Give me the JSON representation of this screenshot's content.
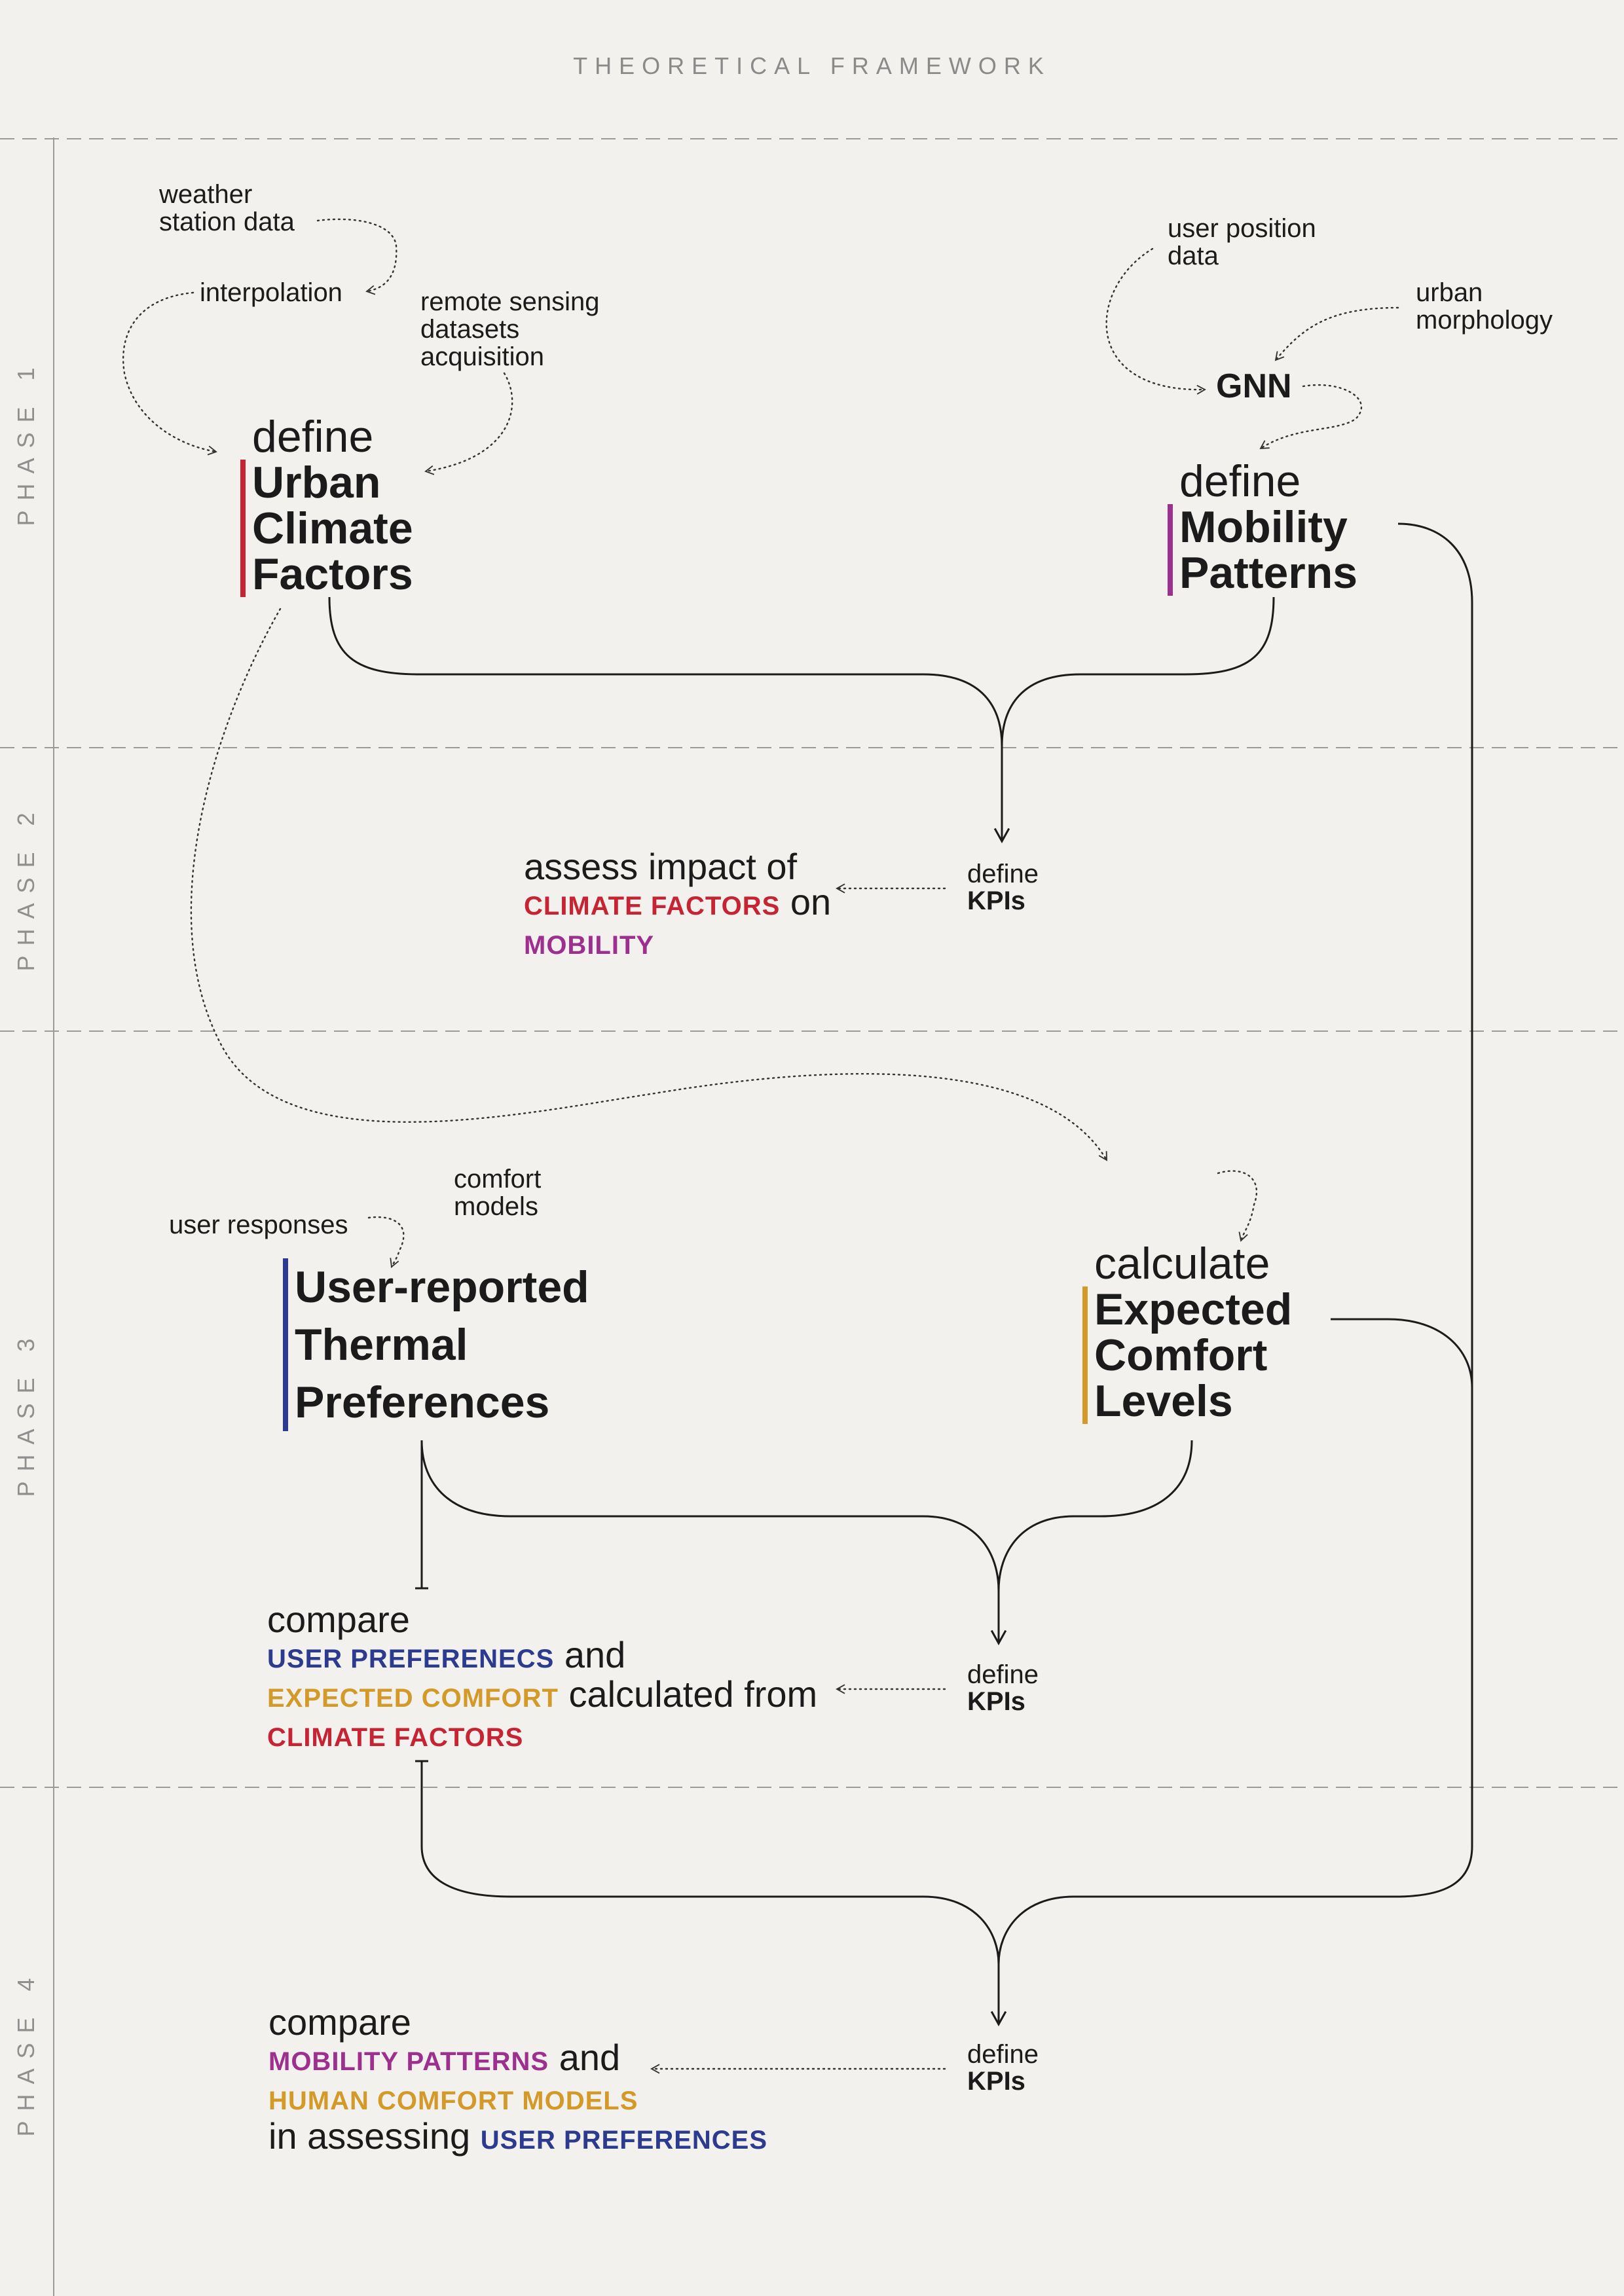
{
  "title": "THEORETICAL   FRAMEWORK",
  "colors": {
    "background": "#f3f1ed",
    "climate_red": "#c62433",
    "mobility_purple": "#9d2f8f",
    "user_blue": "#2c3a8f",
    "comfort_orange": "#d39a2a",
    "text": "#1b1b1b",
    "divider": "#9a9a9a"
  },
  "phases": [
    "PHASE 1",
    "PHASE 2",
    "PHASE 3",
    "PHASE 4"
  ],
  "phase1": {
    "weather": "weather\nstation data",
    "interpolation": "interpolation",
    "remote_sensing": "remote sensing\ndatasets\nacquisition",
    "climate": {
      "verb": "define",
      "heading": "Urban\nClimate\nFactors"
    },
    "user_position": "user position\ndata",
    "urban_morphology": "urban\nmorphology",
    "gnn": "GNN",
    "mobility": {
      "verb": "define",
      "heading": "Mobility\nPatterns"
    }
  },
  "phase2": {
    "kpi_define": "define",
    "kpi_bold": "KPIs",
    "assess_prefix": "assess impact of",
    "kw_climate": "CLIMATE FACTORS",
    "on": "on",
    "kw_mobility": "MOBILITY"
  },
  "phase3": {
    "user_responses": "user responses",
    "comfort_models": "comfort\nmodels",
    "user_reported": "User-reported\nThermal\nPreferences",
    "expected": {
      "verb": "calculate",
      "heading": "Expected\nComfort\nLevels"
    },
    "compare": "compare",
    "kw_user_pref": "USER PREFERENECS",
    "and": "and",
    "kw_expected": "EXPECTED COMFORT",
    "calculated_from": "calculated from",
    "kw_climate": "CLIMATE FACTORS",
    "kpi_define": "define",
    "kpi_bold": "KPIs"
  },
  "phase4": {
    "compare": "compare",
    "kw_mobility": "MOBILITY PATTERNS",
    "and": "and",
    "kw_comfort_models": "HUMAN COMFORT MODELS",
    "in_assessing": "in assessing",
    "kw_user_pref": "USER PREFERENCES",
    "kpi_define": "define",
    "kpi_bold": "KPIs"
  },
  "icons": {
    "solid_flow": "solid-connector-with-arrowhead",
    "dotted_flow": "dotted-connector-with-arrowhead"
  }
}
